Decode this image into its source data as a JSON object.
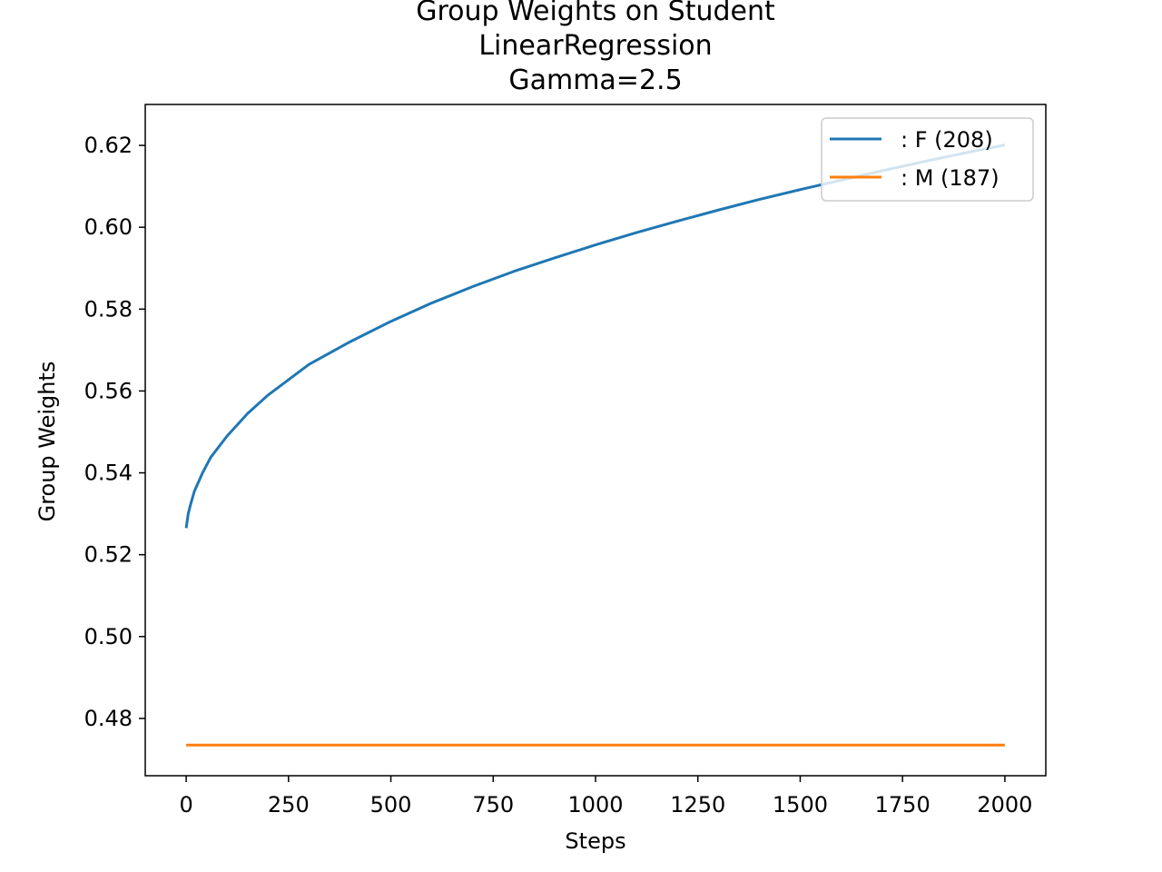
{
  "chart_data": {
    "type": "line",
    "title_lines": [
      "Group Weights on Student",
      "LinearRegression",
      "Gamma=2.5"
    ],
    "xlabel": "Steps",
    "ylabel": "Group Weights",
    "xlim": [
      -100,
      2100
    ],
    "ylim": [
      0.466,
      0.63
    ],
    "xticks": [
      0,
      250,
      500,
      750,
      1000,
      1250,
      1500,
      1750,
      2000
    ],
    "xtick_labels": [
      "0",
      "250",
      "500",
      "750",
      "1000",
      "1250",
      "1500",
      "1750",
      "2000"
    ],
    "yticks": [
      0.48,
      0.5,
      0.52,
      0.54,
      0.56,
      0.58,
      0.6,
      0.62
    ],
    "ytick_labels": [
      "0.48",
      "0.50",
      "0.52",
      "0.54",
      "0.56",
      "0.58",
      "0.60",
      "0.62"
    ],
    "legend_position": "upper-right",
    "series": [
      {
        "name": ": F  (208)",
        "color": "#1f77b4",
        "x": [
          0,
          5,
          10,
          20,
          40,
          60,
          100,
          150,
          200,
          300,
          400,
          500,
          600,
          700,
          800,
          900,
          1000,
          1100,
          1200,
          1300,
          1400,
          1500,
          1600,
          1700,
          1800,
          1900,
          2000
        ],
        "y": [
          0.5265,
          0.53,
          0.532,
          0.5355,
          0.54,
          0.5438,
          0.549,
          0.5545,
          0.559,
          0.5665,
          0.572,
          0.577,
          0.5815,
          0.5855,
          0.5892,
          0.5925,
          0.5957,
          0.5987,
          0.6015,
          0.6042,
          0.6068,
          0.6092,
          0.6115,
          0.6138,
          0.616,
          0.6181,
          0.6201
        ]
      },
      {
        "name": ": M  (187)",
        "color": "#ff7f0e",
        "x": [
          0,
          2000
        ],
        "y": [
          0.4735,
          0.4735
        ]
      }
    ]
  }
}
